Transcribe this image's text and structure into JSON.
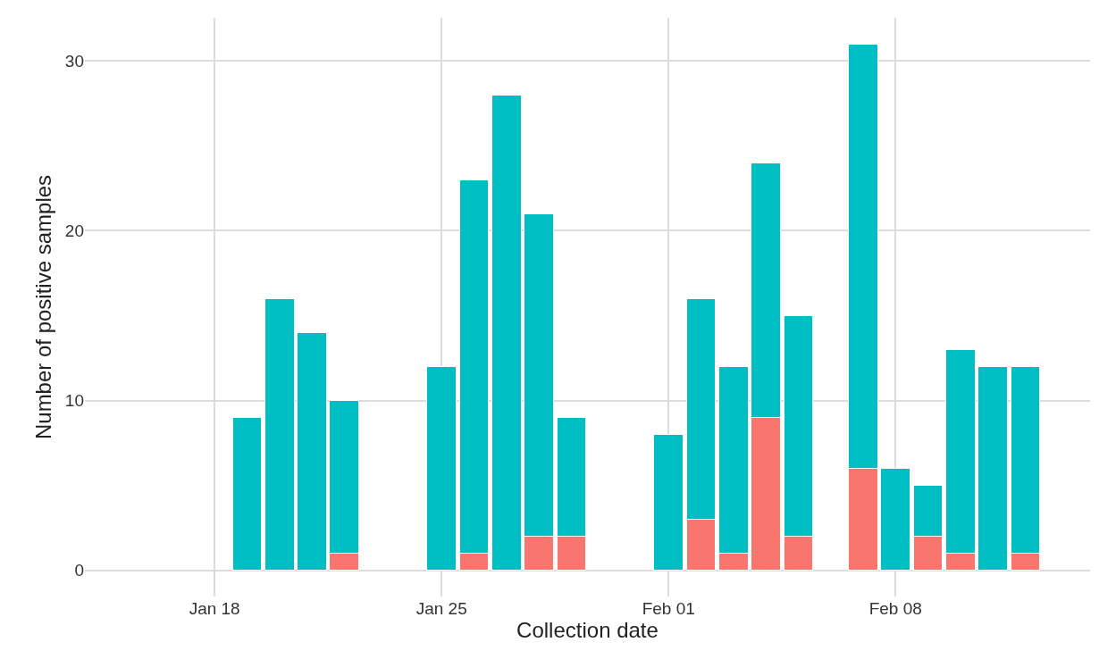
{
  "chart_data": {
    "type": "bar",
    "stacked": true,
    "xlabel": "Collection date",
    "ylabel": "Number of positive samples",
    "x": [
      "--01-19",
      "--01-20",
      "--01-21",
      "--01-22",
      "--01-25",
      "--01-26",
      "--01-27",
      "--01-28",
      "--01-29",
      "--02-01",
      "--02-02",
      "--02-03",
      "--02-04",
      "--02-05",
      "--02-07",
      "--02-08",
      "--02-09",
      "--02-10",
      "--02-11",
      "--02-12"
    ],
    "series": [
      {
        "color": "#f8766d",
        "values": [
          0,
          0,
          0,
          1,
          0,
          1,
          0,
          2,
          2,
          0,
          3,
          1,
          9,
          2,
          6,
          0,
          2,
          1,
          0,
          1
        ]
      },
      {
        "color": "#00bfc4",
        "values": [
          9,
          16,
          14,
          9,
          12,
          22,
          28,
          19,
          7,
          8,
          13,
          11,
          15,
          13,
          25,
          6,
          3,
          12,
          12,
          11
        ]
      }
    ],
    "xlim": [
      "--01-14",
      "--02-14"
    ],
    "xticks": [
      {
        "value": "--01-18",
        "label": "Jan 18"
      },
      {
        "value": "--01-25",
        "label": "Jan 25"
      },
      {
        "value": "--02-01",
        "label": "Feb 01"
      },
      {
        "value": "--02-08",
        "label": "Feb 08"
      }
    ],
    "ylim": [
      -1.55,
      32.55
    ],
    "yticks": [
      0,
      10,
      20,
      30
    ],
    "grid": true
  }
}
